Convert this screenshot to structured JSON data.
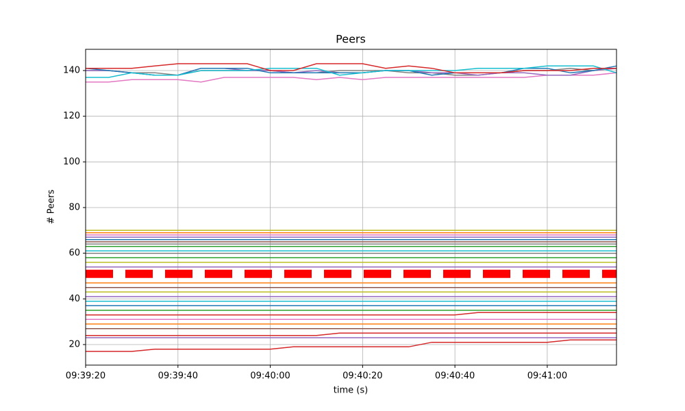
{
  "chart_data": {
    "type": "line",
    "title": "Peers",
    "x_label": "time (s)",
    "y_label": "# Peers",
    "grid": true,
    "x": [
      "09:39:20",
      "09:39:25",
      "09:39:30",
      "09:39:35",
      "09:39:40",
      "09:39:45",
      "09:39:50",
      "09:39:55",
      "09:40:00",
      "09:40:05",
      "09:40:10",
      "09:40:15",
      "09:40:20",
      "09:40:25",
      "09:40:30",
      "09:40:35",
      "09:40:40",
      "09:40:45",
      "09:40:50",
      "09:40:55",
      "09:41:00",
      "09:41:05",
      "09:41:10",
      "09:41:15"
    ],
    "xlim": [
      "09:39:20",
      "09:41:15"
    ],
    "xticks": [
      "09:39:20",
      "09:39:40",
      "09:40:00",
      "09:40:20",
      "09:40:40",
      "09:41:00"
    ],
    "ylim": [
      11,
      149.3
    ],
    "yticks": [
      20,
      40,
      60,
      80,
      100,
      120,
      140
    ],
    "series": [
      {
        "color": "#bcbd22",
        "values": [
          70,
          70,
          70,
          70,
          70,
          70,
          70,
          70,
          70,
          70,
          70,
          70,
          70,
          70,
          70,
          70,
          70,
          70,
          70,
          70,
          70,
          70,
          70,
          70
        ]
      },
      {
        "color": "#ff7f0e",
        "values": [
          69,
          69,
          69,
          69,
          69,
          69,
          69,
          69,
          69,
          69,
          69,
          69,
          69,
          69,
          69,
          69,
          69,
          69,
          69,
          69,
          69,
          69,
          69,
          69
        ]
      },
      {
        "color": "#e377c2",
        "values": [
          68,
          68,
          68,
          68,
          68,
          68,
          68,
          68,
          68,
          68,
          68,
          68,
          68,
          68,
          68,
          68,
          68,
          68,
          68,
          68,
          68,
          68,
          68,
          68
        ]
      },
      {
        "color": "#9467bd",
        "values": [
          67,
          67,
          67,
          67,
          67,
          67,
          67,
          67,
          67,
          67,
          67,
          67,
          67,
          67,
          67,
          67,
          67,
          67,
          67,
          67,
          67,
          67,
          67,
          67
        ]
      },
      {
        "color": "#1f77b4",
        "values": [
          66,
          66,
          66,
          66,
          66,
          66,
          66,
          66,
          66,
          66,
          66,
          66,
          66,
          66,
          66,
          66,
          66,
          66,
          66,
          66,
          66,
          66,
          66,
          66
        ]
      },
      {
        "color": "#8c564b",
        "values": [
          65,
          65,
          65,
          65,
          65,
          65,
          65,
          65,
          65,
          65,
          65,
          65,
          65,
          65,
          65,
          65,
          65,
          65,
          65,
          65,
          65,
          65,
          65,
          65
        ]
      },
      {
        "color": "#7f7f7f",
        "values": [
          64,
          64,
          64,
          64,
          64,
          64,
          64,
          64,
          64,
          64,
          64,
          64,
          64,
          64,
          64,
          64,
          64,
          64,
          64,
          64,
          64,
          64,
          64,
          64
        ]
      },
      {
        "color": "#2ca02c",
        "values": [
          63,
          63,
          63,
          63,
          63,
          63,
          63,
          63,
          63,
          63,
          63,
          63,
          63,
          63,
          63,
          63,
          63,
          63,
          63,
          63,
          63,
          63,
          63,
          63
        ]
      },
      {
        "color": "#17becf",
        "values": [
          61,
          61,
          61,
          61,
          61,
          61,
          61,
          61,
          61,
          61,
          61,
          61,
          61,
          61,
          61,
          61,
          61,
          61,
          61,
          61,
          61,
          61,
          61,
          61
        ]
      },
      {
        "color": "#7f7f7f",
        "values": [
          60,
          60,
          60,
          60,
          60,
          60,
          60,
          60,
          60,
          60,
          60,
          60,
          60,
          60,
          60,
          60,
          60,
          60,
          60,
          60,
          60,
          60,
          60,
          60
        ]
      },
      {
        "color": "#2ca02c",
        "values": [
          58,
          58,
          58,
          58,
          58,
          58,
          58,
          58,
          58,
          58,
          58,
          58,
          58,
          58,
          58,
          58,
          58,
          58,
          58,
          58,
          58,
          58,
          58,
          58
        ]
      },
      {
        "color": "#bcbd22",
        "values": [
          56,
          56,
          56,
          56,
          56,
          56,
          56,
          56,
          56,
          56,
          56,
          56,
          56,
          56,
          56,
          56,
          56,
          56,
          56,
          56,
          56,
          56,
          56,
          56
        ]
      },
      {
        "color": "#9467bd",
        "values": [
          54,
          54,
          54,
          54,
          54,
          54,
          54,
          54,
          54,
          54,
          54,
          54,
          54,
          54,
          54,
          54,
          54,
          54,
          54,
          54,
          54,
          54,
          54,
          54
        ]
      },
      {
        "color": "#ff7f0e",
        "values": [
          47,
          47,
          47,
          47,
          47,
          47,
          47,
          47,
          47,
          47,
          47,
          47,
          47,
          47,
          47,
          47,
          47,
          47,
          47,
          47,
          47,
          47,
          47,
          47
        ]
      },
      {
        "color": "#8c564b",
        "values": [
          45,
          45,
          45,
          45,
          45,
          45,
          45,
          45,
          45,
          45,
          45,
          45,
          45,
          45,
          45,
          45,
          45,
          45,
          45,
          45,
          45,
          45,
          45,
          45
        ]
      },
      {
        "color": "#bcbd22",
        "values": [
          43,
          43,
          43,
          43,
          43,
          43,
          43,
          43,
          43,
          43,
          43,
          43,
          43,
          43,
          43,
          43,
          43,
          43,
          43,
          43,
          43,
          43,
          43,
          43
        ]
      },
      {
        "color": "#9467bd",
        "values": [
          41,
          41,
          41,
          41,
          41,
          41,
          41,
          41,
          41,
          41,
          41,
          41,
          41,
          41,
          41,
          41,
          41,
          41,
          41,
          41,
          41,
          41,
          41,
          41
        ]
      },
      {
        "color": "#17becf",
        "values": [
          39,
          39,
          39,
          39,
          39,
          39,
          39,
          39,
          39,
          39,
          39,
          39,
          39,
          39,
          39,
          39,
          39,
          39,
          39,
          39,
          39,
          39,
          39,
          39
        ]
      },
      {
        "color": "#1f77b4",
        "values": [
          37,
          37,
          37,
          37,
          37,
          37,
          37,
          37,
          37,
          37,
          37,
          37,
          37,
          37,
          37,
          37,
          37,
          37,
          37,
          37,
          37,
          37,
          37,
          37
        ]
      },
      {
        "color": "#2ca02c",
        "values": [
          35,
          35,
          35,
          35,
          35,
          35,
          35,
          35,
          35,
          35,
          35,
          35,
          35,
          35,
          35,
          35,
          35,
          35,
          35,
          35,
          35,
          35,
          35,
          35
        ]
      },
      {
        "color": "#d62728",
        "values": [
          33,
          33,
          33,
          33,
          33,
          33,
          33,
          33,
          33,
          33,
          33,
          33,
          33,
          33,
          33,
          33,
          33,
          34,
          34,
          34,
          34,
          34,
          34,
          34
        ]
      },
      {
        "color": "#e377c2",
        "values": [
          31,
          31,
          31,
          31,
          31,
          31,
          31,
          31,
          31,
          31,
          31,
          31,
          31,
          31,
          31,
          31,
          31,
          31,
          31,
          31,
          31,
          31,
          31,
          31
        ]
      },
      {
        "color": "#ff7f0e",
        "values": [
          29,
          29,
          29,
          29,
          29,
          29,
          29,
          29,
          29,
          29,
          29,
          29,
          29,
          29,
          29,
          29,
          29,
          29,
          29,
          29,
          29,
          29,
          29,
          29
        ]
      },
      {
        "color": "#8c564b",
        "values": [
          27,
          27,
          27,
          27,
          27,
          27,
          27,
          27,
          27,
          27,
          27,
          27,
          27,
          27,
          27,
          27,
          27,
          27,
          27,
          27,
          27,
          27,
          27,
          27
        ]
      },
      {
        "color": "#d62728",
        "values": [
          24,
          24,
          24,
          24,
          24,
          24,
          24,
          24,
          24,
          24,
          24,
          25,
          25,
          25,
          25,
          25,
          25,
          25,
          25,
          25,
          25,
          25,
          25,
          25
        ]
      },
      {
        "color": "#9467bd",
        "values": [
          23,
          23,
          23,
          23,
          23,
          23,
          23,
          23,
          23,
          23,
          23,
          23,
          23,
          23,
          23,
          23,
          23,
          23,
          23,
          23,
          23,
          23,
          23,
          23
        ]
      },
      {
        "color": "#ff0000",
        "linestyle": "dashed",
        "values": [
          51,
          51,
          51,
          51,
          51,
          51,
          51,
          51,
          51,
          51,
          51,
          51,
          51,
          51,
          51,
          51,
          51,
          51,
          51,
          51,
          51,
          51,
          51,
          51
        ]
      },
      {
        "color": "#d62728",
        "values": [
          17,
          17,
          17,
          18,
          18,
          18,
          18,
          18,
          18,
          19,
          19,
          19,
          19,
          19,
          19,
          21,
          21,
          21,
          21,
          21,
          21,
          22,
          22,
          22
        ]
      },
      {
        "color": "#e377c2",
        "values": [
          135,
          135,
          136,
          136,
          136,
          135,
          137,
          137,
          137,
          137,
          136,
          137,
          136,
          137,
          137,
          137,
          137,
          137,
          137,
          137,
          138,
          138,
          138,
          139
        ]
      },
      {
        "color": "#7f7f7f",
        "values": [
          140,
          140,
          139,
          139,
          138,
          140,
          140,
          140,
          140,
          139,
          139,
          140,
          140,
          140,
          139,
          139,
          138,
          138,
          139,
          140,
          140,
          141,
          140,
          141
        ]
      },
      {
        "color": "#9467bd",
        "values": [
          140,
          140,
          139,
          138,
          138,
          141,
          141,
          140,
          140,
          139,
          140,
          139,
          139,
          140,
          140,
          139,
          139,
          138,
          139,
          139,
          138,
          138,
          140,
          141
        ]
      },
      {
        "color": "#1f77b4",
        "values": [
          141,
          140,
          139,
          138,
          138,
          141,
          141,
          141,
          139,
          139,
          139,
          139,
          139,
          140,
          140,
          138,
          139,
          139,
          139,
          141,
          141,
          139,
          140,
          142
        ]
      },
      {
        "color": "#17becf",
        "values": [
          137,
          137,
          139,
          138,
          138,
          140,
          140,
          140,
          141,
          141,
          141,
          138,
          139,
          140,
          140,
          140,
          140,
          141,
          141,
          141,
          142,
          142,
          142,
          139
        ]
      },
      {
        "color": "#d62728",
        "values": [
          141,
          141,
          141,
          142,
          143,
          143,
          143,
          143,
          140,
          140,
          143,
          143,
          143,
          141,
          142,
          141,
          139,
          139,
          139,
          140,
          140,
          140,
          141,
          141
        ]
      }
    ]
  }
}
